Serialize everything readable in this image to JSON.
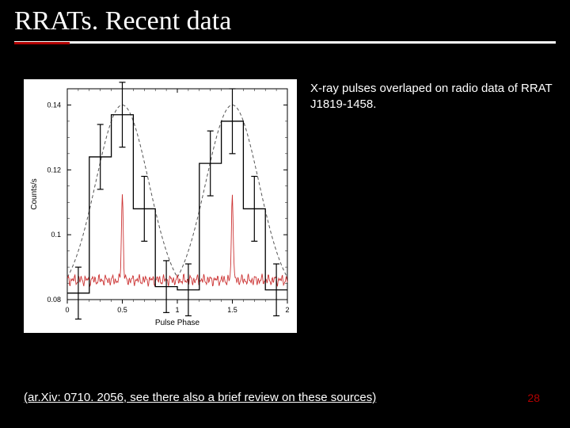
{
  "title": "RRATs. Recent data",
  "caption": "X-ray pulses overlaped on radio data of RRAT J1819-1458.",
  "citation": "(ar.Xiv: 0710. 2056, see there also a brief review on these sources)",
  "page_number": "28",
  "colors": {
    "background": "#000000",
    "text": "#ffffff",
    "accent": "#b00000",
    "chart_bg": "#ffffff",
    "radio_line": "#cc3333",
    "xray_line": "#000000",
    "envelope_line": "#555555"
  },
  "chart": {
    "type": "line",
    "xlabel": "Pulse Phase",
    "ylabel": "Counts/s",
    "xlim": [
      0,
      2
    ],
    "ylim": [
      0.08,
      0.145
    ],
    "xtick_step": 0.5,
    "xticks": [
      0,
      0.5,
      1,
      1.5,
      2
    ],
    "yticks": [
      0.08,
      0.1,
      0.12,
      0.14
    ],
    "xray_points": [
      {
        "x": 0.1,
        "y": 0.082,
        "err": 0.008
      },
      {
        "x": 0.3,
        "y": 0.124,
        "err": 0.01
      },
      {
        "x": 0.5,
        "y": 0.137,
        "err": 0.01
      },
      {
        "x": 0.7,
        "y": 0.108,
        "err": 0.01
      },
      {
        "x": 0.9,
        "y": 0.084,
        "err": 0.008
      },
      {
        "x": 1.1,
        "y": 0.083,
        "err": 0.008
      },
      {
        "x": 1.3,
        "y": 0.122,
        "err": 0.01
      },
      {
        "x": 1.5,
        "y": 0.135,
        "err": 0.01
      },
      {
        "x": 1.7,
        "y": 0.108,
        "err": 0.01
      },
      {
        "x": 1.9,
        "y": 0.083,
        "err": 0.008
      }
    ],
    "radio_baseline": 0.086,
    "radio_spike_height": 0.113,
    "radio_spike_positions": [
      0.5,
      1.5
    ],
    "envelope_peak": 0.14,
    "envelope_base": 0.08,
    "label_fontsize": 10,
    "tick_fontsize": 9
  }
}
